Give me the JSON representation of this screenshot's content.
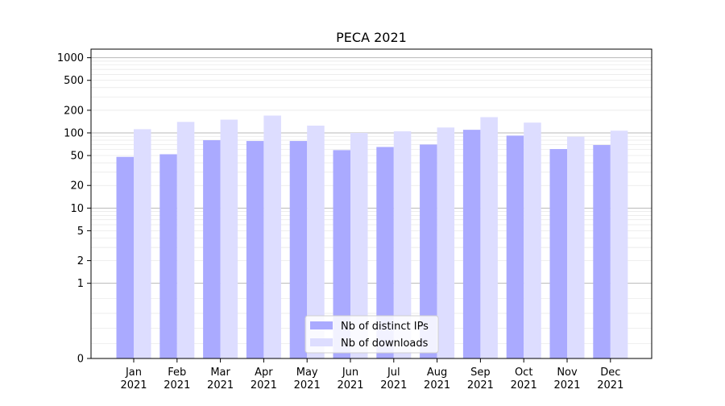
{
  "chart_data": {
    "type": "bar",
    "title": "PECA 2021",
    "xlabel": "",
    "ylabel": "",
    "yscale": "symlog",
    "ylim": [
      0,
      1300
    ],
    "yticks": [
      0,
      1,
      2,
      5,
      10,
      20,
      50,
      100,
      200,
      500,
      1000
    ],
    "ytick_labels": [
      "0",
      "1",
      "2",
      "5",
      "10",
      "20",
      "50",
      "100",
      "200",
      "500",
      "1000"
    ],
    "categories": [
      "Jan\n2021",
      "Feb\n2021",
      "Mar\n2021",
      "Apr\n2021",
      "May\n2021",
      "Jun\n2021",
      "Jul\n2021",
      "Aug\n2021",
      "Sep\n2021",
      "Oct\n2021",
      "Nov\n2021",
      "Dec\n2021"
    ],
    "series": [
      {
        "name": "Nb of distinct IPs",
        "color": "#aaaaff",
        "values": [
          48,
          52,
          80,
          78,
          78,
          59,
          65,
          70,
          110,
          92,
          61,
          69
        ]
      },
      {
        "name": "Nb of downloads",
        "color": "#ddddff",
        "values": [
          112,
          140,
          150,
          170,
          125,
          100,
          105,
          118,
          162,
          137,
          89,
          107
        ]
      }
    ],
    "legend_position": "lower center",
    "grid": "y (major and minor)"
  }
}
